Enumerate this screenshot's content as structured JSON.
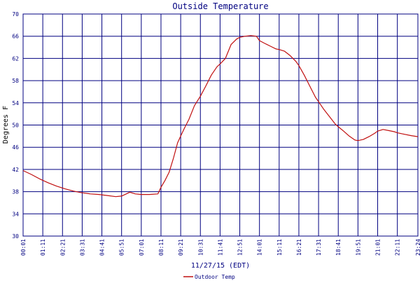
{
  "chart_data": {
    "type": "line",
    "title": "Outside Temperature",
    "xlabel": "11/27/15 (EDT)",
    "ylabel": "Degrees F",
    "ylim": [
      30,
      70
    ],
    "yticks": [
      "30",
      "34",
      "38",
      "42",
      "46",
      "50",
      "54",
      "58",
      "62",
      "66",
      "70"
    ],
    "xticks": [
      "00:01",
      "01:11",
      "02:21",
      "03:31",
      "04:41",
      "05:51",
      "07:01",
      "08:11",
      "09:21",
      "10:31",
      "11:41",
      "12:51",
      "14:01",
      "15:11",
      "16:21",
      "17:31",
      "18:41",
      "19:51",
      "21:01",
      "22:11",
      "23:24"
    ],
    "grid": true,
    "legend_position": "bottom",
    "series": [
      {
        "name": "Outdoor Temp",
        "color": "#c01010",
        "x_minutes": [
          1,
          30,
          60,
          90,
          120,
          150,
          180,
          210,
          240,
          270,
          300,
          330,
          351,
          380,
          400,
          420,
          450,
          480,
          491,
          505,
          520,
          535,
          550,
          561,
          575,
          590,
          610,
          631,
          650,
          670,
          690,
          701,
          720,
          740,
          760,
          771,
          790,
          810,
          830,
          841,
          860,
          880,
          900,
          911,
          930,
          950,
          970,
          981,
          1000,
          1020,
          1040,
          1051,
          1070,
          1090,
          1110,
          1121,
          1140,
          1160,
          1180,
          1191,
          1210,
          1230,
          1250,
          1261,
          1280,
          1300,
          1320,
          1331,
          1350,
          1380,
          1404
        ],
        "values": [
          41.8,
          41.1,
          40.3,
          39.6,
          39.0,
          38.5,
          38.1,
          37.8,
          37.6,
          37.5,
          37.3,
          37.1,
          37.2,
          37.9,
          37.6,
          37.5,
          37.5,
          37.6,
          38.8,
          40.0,
          41.5,
          44.0,
          46.8,
          48.0,
          49.5,
          51.0,
          53.5,
          55.2,
          57.0,
          59.0,
          60.5,
          61.0,
          62.0,
          64.5,
          65.5,
          65.8,
          66.0,
          66.1,
          66.0,
          65.2,
          64.7,
          64.2,
          63.7,
          63.6,
          63.3,
          62.5,
          61.5,
          60.7,
          59.0,
          57.0,
          55.0,
          54.2,
          52.8,
          51.5,
          50.2,
          49.7,
          48.9,
          48.0,
          47.3,
          47.2,
          47.4,
          47.9,
          48.5,
          48.9,
          49.2,
          49.0,
          48.8,
          48.6,
          48.4,
          48.1,
          47.9
        ]
      }
    ]
  }
}
